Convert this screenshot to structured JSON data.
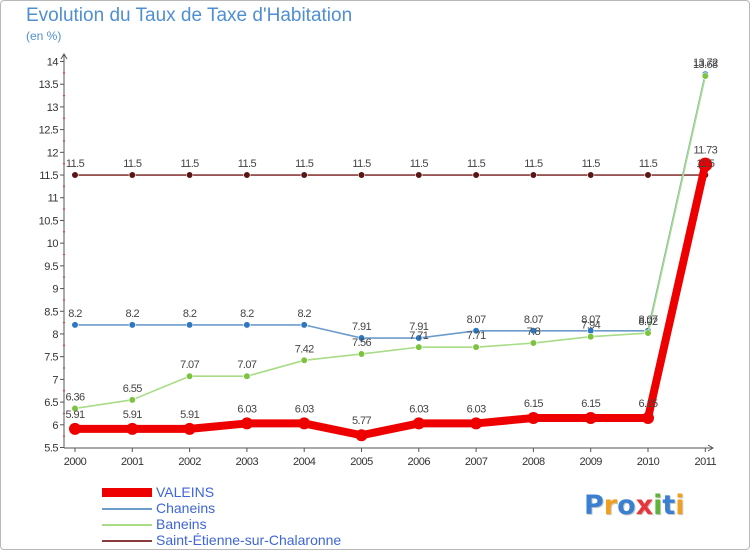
{
  "title": "Evolution du Taux de Taxe d'Habitation",
  "unit_label": "(en %)",
  "logo": {
    "text": "Proxiti",
    "colors": [
      "#3b7fd0",
      "#f0a01e",
      "#3b7fd0",
      "#e8353b",
      "#5fb33b",
      "#3b7fd0",
      "#f0a01e"
    ]
  },
  "chart_data": {
    "type": "line",
    "title": "Evolution du Taux de Taxe d'Habitation",
    "ylabel": "(en %)",
    "x": [
      "2000",
      "2001",
      "2002",
      "2003",
      "2004",
      "2005",
      "2006",
      "2007",
      "2008",
      "2009",
      "2010",
      "2011"
    ],
    "ylim": [
      5.5,
      14
    ],
    "y_ticks": [
      "5.5",
      "6",
      "6.5",
      "7",
      "7.5",
      "8",
      "8.5",
      "9",
      "9.5",
      "10",
      "10.5",
      "11",
      "11.5",
      "12",
      "12.5",
      "13",
      "13.5",
      "14"
    ],
    "grid": false,
    "legend_position": "bottom-left",
    "series": [
      {
        "name": "VALEINS",
        "color": "#ee0000",
        "marker": "#ee0000",
        "values": [
          5.91,
          5.91,
          5.91,
          6.03,
          6.03,
          5.77,
          6.03,
          6.03,
          6.15,
          6.15,
          6.15,
          11.73
        ],
        "labels": [
          "5.91",
          "5.91",
          "5.91",
          "6.03",
          "6.03",
          "5.77",
          "6.03",
          "6.03",
          "6.15",
          "6.15",
          "6.15",
          "11.73"
        ]
      },
      {
        "name": "Chaneins",
        "color": "#6c9ccb",
        "marker": "#2d78c0",
        "values": [
          8.2,
          8.2,
          8.2,
          8.2,
          8.2,
          7.91,
          7.91,
          8.07,
          8.07,
          8.07,
          8.07,
          13.72
        ],
        "labels": [
          "8.2",
          "8.2",
          "8.2",
          "8.2",
          "8.2",
          "7.91",
          "7.91",
          "8.07",
          "8.07",
          "8.07",
          "8.07",
          "13.72"
        ]
      },
      {
        "name": "Baneins",
        "color": "#a8dc86",
        "marker": "#7cc43f",
        "values": [
          6.36,
          6.55,
          7.07,
          7.07,
          7.42,
          7.56,
          7.71,
          7.71,
          7.8,
          7.94,
          8.02,
          13.68
        ],
        "labels": [
          "6.36",
          "6.55",
          "7.07",
          "7.07",
          "7.42",
          "7.56",
          "7.71",
          "7.71",
          "7.8",
          "7.94",
          "8.02",
          "13.68"
        ]
      },
      {
        "name": "Saint-Étienne-sur-Chalaronne",
        "color": "#8a3b3b",
        "marker": "#5a1515",
        "values": [
          11.5,
          11.5,
          11.5,
          11.5,
          11.5,
          11.5,
          11.5,
          11.5,
          11.5,
          11.5,
          11.5,
          11.5
        ],
        "labels": [
          "11.5",
          "11.5",
          "11.5",
          "11.5",
          "11.5",
          "11.5",
          "11.5",
          "11.5",
          "11.5",
          "11.5",
          "11.5",
          "11.5"
        ]
      }
    ]
  }
}
